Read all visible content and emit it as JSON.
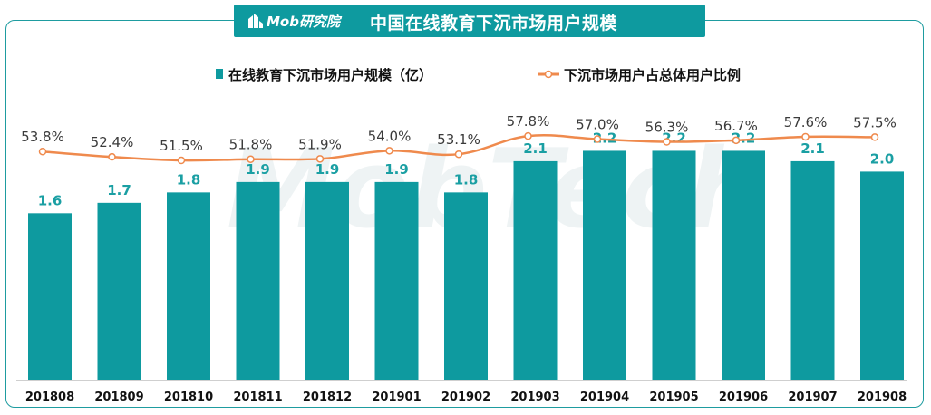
{
  "header": {
    "logo_text": "Mob研究院",
    "title": "中国在线教育下沉市场用户规模"
  },
  "watermark": "MobTech",
  "colors": {
    "bar": "#0e9a9f",
    "line": "#ef8a4d",
    "bar_label": "#1a9fa3",
    "line_label": "#3b3b3b"
  },
  "chart_data": {
    "type": "bar",
    "title": "中国在线教育下沉市场用户规模",
    "categories": [
      "201808",
      "201809",
      "201810",
      "201811",
      "201812",
      "201901",
      "201902",
      "201903",
      "201904",
      "201905",
      "201906",
      "201907",
      "201908"
    ],
    "series": [
      {
        "name": "在线教育下沉市场用户规模（亿）",
        "type": "bar",
        "values": [
          1.6,
          1.7,
          1.8,
          1.9,
          1.9,
          1.9,
          1.8,
          2.1,
          2.2,
          2.2,
          2.2,
          2.1,
          2.0
        ],
        "labels": [
          "1.6",
          "1.7",
          "1.8",
          "1.9",
          "1.9",
          "1.9",
          "1.8",
          "2.1",
          "2.2",
          "2.2",
          "2.2",
          "2.1",
          "2.0"
        ]
      },
      {
        "name": "下沉市场用户占总体用户比例",
        "type": "line",
        "values": [
          53.8,
          52.4,
          51.5,
          51.8,
          51.9,
          54.0,
          53.1,
          57.8,
          57.0,
          56.3,
          56.7,
          57.6,
          57.5
        ],
        "labels": [
          "53.8%",
          "52.4%",
          "51.5%",
          "51.8%",
          "51.9%",
          "54.0%",
          "53.1%",
          "57.8%",
          "57.0%",
          "56.3%",
          "56.7%",
          "57.6%",
          "57.5%"
        ]
      }
    ],
    "legend_position": "top",
    "grid": false
  }
}
